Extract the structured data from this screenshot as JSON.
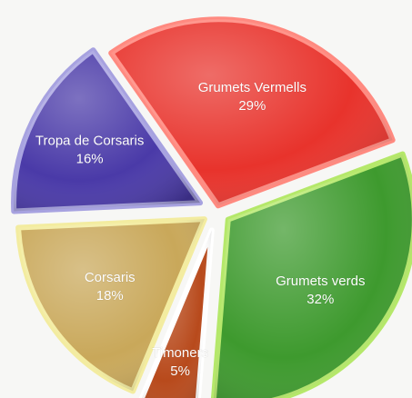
{
  "chart_data": {
    "type": "pie",
    "title": "",
    "slices": [
      {
        "label": "Grumets Vermells",
        "percent_label": "29%",
        "value": 29,
        "color": "#e8332c",
        "edge": "#ff8a80"
      },
      {
        "label": "Grumets verds",
        "percent_label": "32%",
        "value": 32,
        "color": "#3e9a2e",
        "edge": "#b5e86a"
      },
      {
        "label": "Timoners",
        "percent_label": "5%",
        "value": 5,
        "color": "#b84a1c",
        "edge": "#ffffff"
      },
      {
        "label": "Corsaris",
        "percent_label": "18%",
        "value": 18,
        "color": "#c9a85a",
        "edge": "#f3eca0"
      },
      {
        "label": "Tropa de Corsaris",
        "percent_label": "16%",
        "value": 16,
        "color": "#4a3aa8",
        "edge": "#a7a2e0"
      }
    ]
  }
}
